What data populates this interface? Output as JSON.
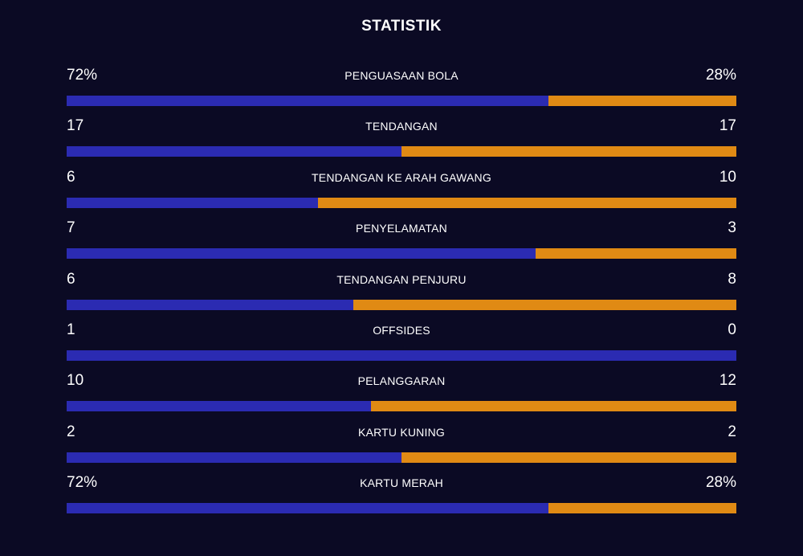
{
  "title": "STATISTIK",
  "colors": {
    "background": "#0b0a24",
    "home": "#2b2bb2",
    "away": "#e08a14"
  },
  "stats": [
    {
      "label": "PENGUASAAN BOLA",
      "left": "72%",
      "right": "28%",
      "home_share": 0.72
    },
    {
      "label": "TENDANGAN",
      "left": "17",
      "right": "17",
      "home_share": 0.5
    },
    {
      "label": "TENDANGAN KE ARAH GAWANG",
      "left": "6",
      "right": "10",
      "home_share": 0.375
    },
    {
      "label": "PENYELAMATAN",
      "left": "7",
      "right": "3",
      "home_share": 0.7
    },
    {
      "label": "TENDANGAN PENJURU",
      "left": "6",
      "right": "8",
      "home_share": 0.4286
    },
    {
      "label": "OFFSIDES",
      "left": "1",
      "right": "0",
      "home_share": 1.0
    },
    {
      "label": "PELANGGARAN",
      "left": "10",
      "right": "12",
      "home_share": 0.4545
    },
    {
      "label": "KARTU KUNING",
      "left": "2",
      "right": "2",
      "home_share": 0.5
    },
    {
      "label": "KARTU MERAH",
      "left": "72%",
      "right": "28%",
      "home_share": 0.72
    }
  ]
}
